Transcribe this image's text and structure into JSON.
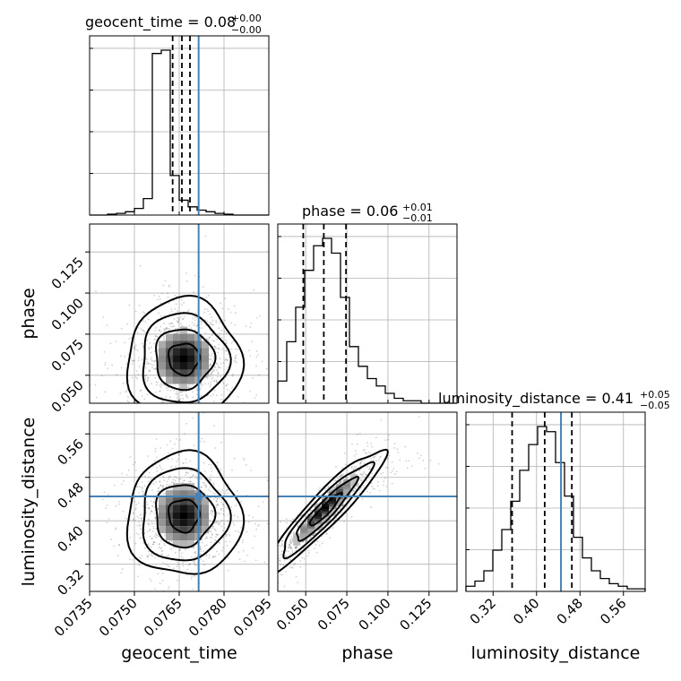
{
  "titles": {
    "geocent_time": {
      "name": "geocent_time",
      "sep": " = ",
      "value": "0.08",
      "sup": "+0.00",
      "sub": "−0.00"
    },
    "phase": {
      "name": "phase",
      "sep": " = ",
      "value": "0.06",
      "sup": "+0.01",
      "sub": "−0.01"
    },
    "luminosity_distance": {
      "name": "luminosity_distance",
      "sep": " = ",
      "value": "0.41",
      "sup": "+0.05",
      "sub": "−0.05"
    }
  },
  "axis_labels": {
    "x_geocent_time": "geocent_time",
    "x_phase": "phase",
    "x_luminosity_distance": "luminosity_distance",
    "y_phase": "phase",
    "y_luminosity_distance": "luminosity_distance"
  },
  "ticks": {
    "geocent_time": [
      "0.0735",
      "0.0750",
      "0.0765",
      "0.0780",
      "0.0795"
    ],
    "phase": [
      "0.050",
      "0.075",
      "0.100",
      "0.125"
    ],
    "luminosity_distance": [
      "0.32",
      "0.40",
      "0.48",
      "0.56"
    ]
  },
  "colors": {
    "truth": "#4682b4",
    "hist": "#000000",
    "grid": "#b0b0b0",
    "scatter": "#000000"
  },
  "chart_data": {
    "type": "corner",
    "parameters": [
      "geocent_time",
      "phase",
      "luminosity_distance"
    ],
    "ranges": {
      "geocent_time": [
        0.0735,
        0.0795
      ],
      "phase": [
        0.033,
        0.142
      ],
      "luminosity_distance": [
        0.27,
        0.6
      ]
    },
    "truths": {
      "geocent_time": 0.07715,
      "phase": null,
      "luminosity_distance": 0.445
    },
    "quantiles": {
      "geocent_time": [
        0.07628,
        0.07659,
        0.07686
      ],
      "phase": [
        0.0485,
        0.061,
        0.0745
      ],
      "luminosity_distance": [
        0.355,
        0.415,
        0.465
      ]
    },
    "histograms": {
      "geocent_time": {
        "edges_range": [
          0.0735,
          0.0795
        ],
        "bins": 20,
        "counts": [
          0,
          0,
          0.5,
          1,
          2,
          4,
          10,
          98,
          100,
          24,
          9,
          5,
          3,
          2,
          1,
          0.5,
          0,
          0,
          0,
          0
        ]
      },
      "phase": {
        "edges_range": [
          0.033,
          0.142
        ],
        "bins": 20,
        "counts": [
          9,
          25,
          39,
          54,
          64,
          67,
          61,
          43,
          23,
          15,
          10,
          7,
          4,
          2,
          1,
          1,
          0,
          0,
          0,
          0
        ]
      },
      "luminosity_distance": {
        "edges_range": [
          0.27,
          0.6
        ],
        "bins": 20,
        "counts": [
          2,
          4,
          8,
          16,
          24,
          35,
          47,
          57,
          64,
          62,
          50,
          37,
          21,
          13,
          8,
          5,
          3,
          2,
          1,
          1
        ]
      }
    },
    "scatter_2d": [
      {
        "x": "geocent_time",
        "y": "phase",
        "center": [
          0.07665,
          0.06
        ],
        "spread": [
          0.00085,
          0.016
        ],
        "corr": 0.0
      },
      {
        "x": "geocent_time",
        "y": "luminosity_distance",
        "center": [
          0.07665,
          0.41
        ],
        "spread": [
          0.00085,
          0.05
        ],
        "corr": 0.0
      },
      {
        "x": "phase",
        "y": "luminosity_distance",
        "center": [
          0.062,
          0.42
        ],
        "spread": [
          0.016,
          0.05
        ],
        "corr": 0.93
      }
    ],
    "contour_levels": [
      "0.5-sigma",
      "1-sigma",
      "1.5-sigma",
      "2-sigma"
    ]
  }
}
